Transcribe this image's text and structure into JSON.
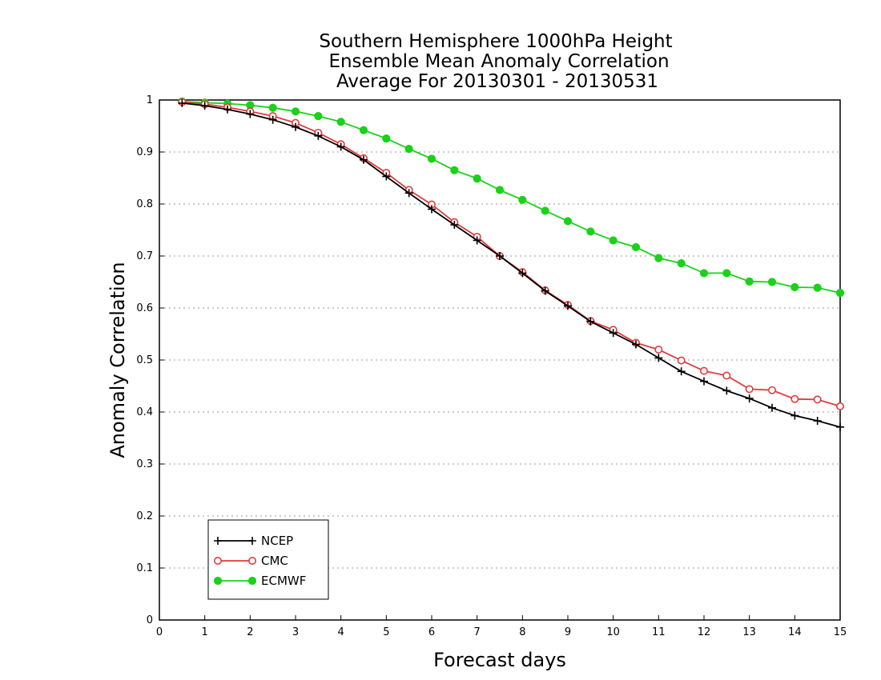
{
  "chart_data": {
    "type": "line",
    "title_lines": [
      "Southern Hemisphere 1000hPa Height",
      "Ensemble Mean Anomaly Correlation",
      "Average For 20130301 - 20130531"
    ],
    "xlabel": "Forecast days",
    "ylabel": "Anomaly Correlation",
    "xlim": [
      0,
      15
    ],
    "ylim": [
      0,
      1
    ],
    "xticks": [
      "0",
      "1",
      "2",
      "3",
      "4",
      "5",
      "6",
      "7",
      "8",
      "9",
      "10",
      "11",
      "12",
      "13",
      "14",
      "15"
    ],
    "yticks": [
      "0",
      "0.1",
      "0.2",
      "0.3",
      "0.4",
      "0.5",
      "0.6",
      "0.7",
      "0.8",
      "0.9",
      "1"
    ],
    "grid": "horizontal-dotted",
    "legend_position": "bottom-left",
    "x": [
      0.5,
      1,
      1.5,
      2,
      2.5,
      3,
      3.5,
      4,
      4.5,
      5,
      5.5,
      6,
      6.5,
      7,
      7.5,
      8,
      8.5,
      9,
      9.5,
      10,
      10.5,
      11,
      11.5,
      12,
      12.5,
      13,
      13.5,
      14,
      14.5,
      15
    ],
    "series": [
      {
        "name": "NCEP",
        "color": "#000000",
        "marker": "plus",
        "values": [
          0.994,
          0.989,
          0.982,
          0.973,
          0.962,
          0.948,
          0.931,
          0.91,
          0.885,
          0.853,
          0.821,
          0.79,
          0.76,
          0.73,
          0.7,
          0.667,
          0.633,
          0.604,
          0.574,
          0.552,
          0.53,
          0.504,
          0.478,
          0.459,
          0.441,
          0.426,
          0.408,
          0.393,
          0.383,
          0.371
        ]
      },
      {
        "name": "CMC",
        "color": "#e03c3c",
        "marker": "open-circle",
        "values": [
          0.996,
          0.992,
          0.986,
          0.978,
          0.969,
          0.956,
          0.937,
          0.915,
          0.888,
          0.86,
          0.827,
          0.799,
          0.765,
          0.737,
          0.7,
          0.669,
          0.634,
          0.606,
          0.575,
          0.558,
          0.533,
          0.52,
          0.499,
          0.479,
          0.47,
          0.444,
          0.442,
          0.425,
          0.424,
          0.411
        ]
      },
      {
        "name": "ECMWF",
        "color": "#19d219",
        "marker": "filled-circle",
        "values": [
          0.997,
          0.995,
          0.993,
          0.99,
          0.985,
          0.978,
          0.969,
          0.958,
          0.942,
          0.926,
          0.906,
          0.887,
          0.865,
          0.849,
          0.827,
          0.808,
          0.787,
          0.767,
          0.747,
          0.73,
          0.717,
          0.696,
          0.686,
          0.667,
          0.667,
          0.651,
          0.65,
          0.64,
          0.639,
          0.629
        ]
      }
    ]
  }
}
